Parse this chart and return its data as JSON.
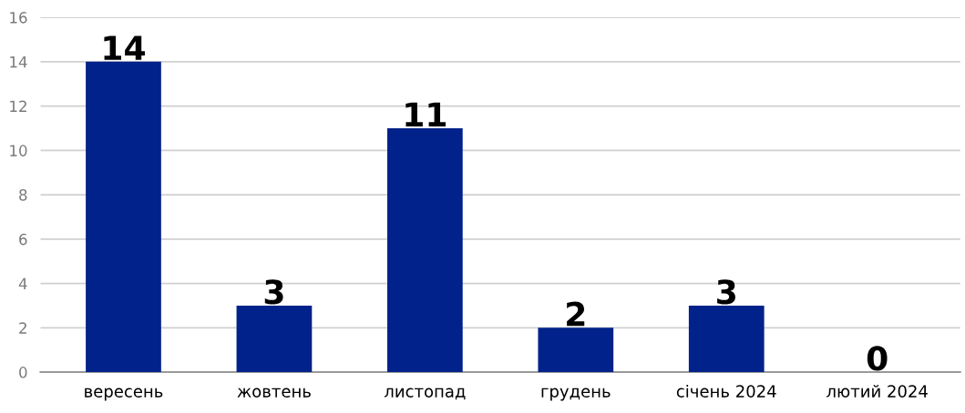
{
  "chart_data": {
    "type": "bar",
    "categories": [
      "вересень",
      "жовтень",
      "листопад",
      "грудень",
      "січень 2024",
      "лютий 2024"
    ],
    "values": [
      14,
      3,
      11,
      2,
      3,
      0
    ],
    "color": "#00228a",
    "ylim": [
      0,
      16
    ],
    "yticks": [
      0,
      2,
      4,
      6,
      8,
      10,
      12,
      14,
      16
    ],
    "grid": "y",
    "data_labels": true
  }
}
